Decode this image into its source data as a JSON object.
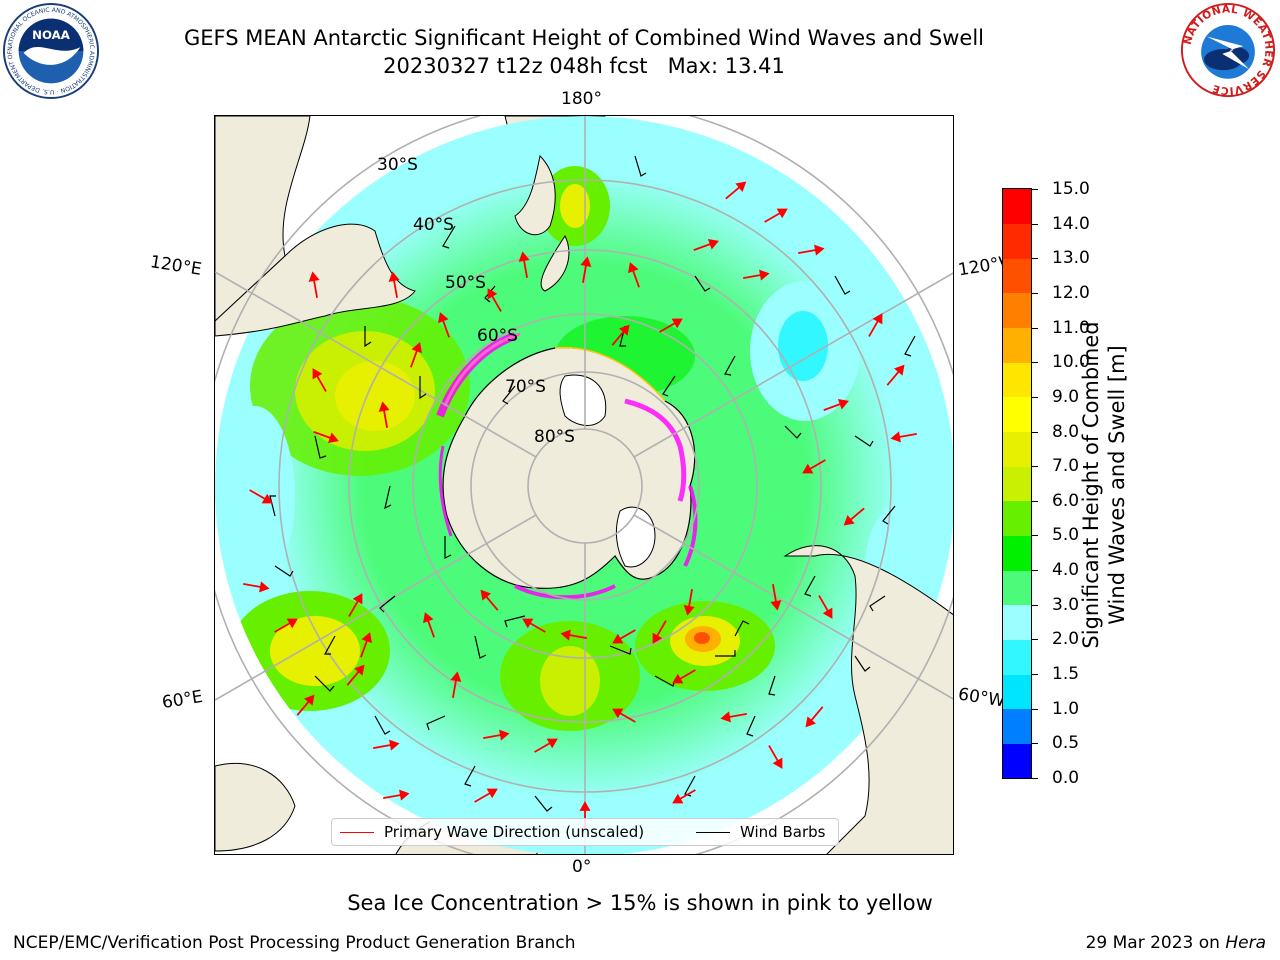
{
  "header": {
    "title_line1": "GEFS MEAN Antarctic Significant Height of Combined Wind Waves and Swell",
    "title_line2": "20230327 t12z 048h fcst   Max: 13.41"
  },
  "logos": {
    "left": {
      "icon": "noaa-logo-icon",
      "text": "NOAA",
      "ring_text": "NATIONAL OCEANIC AND ATMOSPHERIC ADMINISTRATION · U.S. DEPARTMENT OF COMMERCE"
    },
    "right": {
      "icon": "national-weather-service-logo-icon",
      "ring_text": "NATIONAL WEATHER SERVICE"
    }
  },
  "map": {
    "projection": "south-polar-stereographic",
    "longitude_labels": {
      "top": "180°",
      "bottom": "0°",
      "upper_left": "120°E",
      "upper_right": "120°W",
      "lower_left": "60°E",
      "lower_right": "60°W"
    },
    "latitude_labels": [
      "30°S",
      "40°S",
      "50°S",
      "60°S",
      "70°S",
      "80°S"
    ],
    "land_color": "#efecdc",
    "ice_shelf_color": "#ffffff",
    "graticule_color": "#b0b0b0",
    "wave_direction_arrow_color": "#ff0000",
    "wind_barb_color": "#000000",
    "sea_ice_colors": [
      "#ff00ff",
      "#ff66cc",
      "#ffcc00"
    ]
  },
  "legend": {
    "items": [
      {
        "label": "Primary Wave Direction (unscaled)",
        "color": "#ff0000"
      },
      {
        "label": "Wind Barbs",
        "color": "#000000"
      }
    ]
  },
  "colorbar": {
    "label_line1": "Significant Height of Combined",
    "label_line2": "Wind Waves and Swell [m]",
    "ticks": [
      "0.0",
      "0.5",
      "1.0",
      "1.5",
      "2.0",
      "3.0",
      "4.0",
      "5.0",
      "6.0",
      "7.0",
      "8.0",
      "9.0",
      "10.0",
      "11.0",
      "12.0",
      "13.0",
      "14.0",
      "15.0"
    ],
    "colors": [
      "#0000ff",
      "#0080ff",
      "#00e5ff",
      "#33f7ff",
      "#9cffff",
      "#4dfb7a",
      "#00f000",
      "#66f000",
      "#c8f000",
      "#e6f000",
      "#ffff00",
      "#ffe600",
      "#ffb000",
      "#ff8000",
      "#ff5000",
      "#ff2a00",
      "#ff0000"
    ]
  },
  "notes": {
    "sea_ice": "Sea Ice Concentration > 15% is shown in pink to yellow"
  },
  "footer": {
    "left": "NCEP/EMC/Verification Post Processing Product Generation Branch",
    "right_prefix": "29 Mar 2023 on ",
    "right_machine": "Hera"
  }
}
